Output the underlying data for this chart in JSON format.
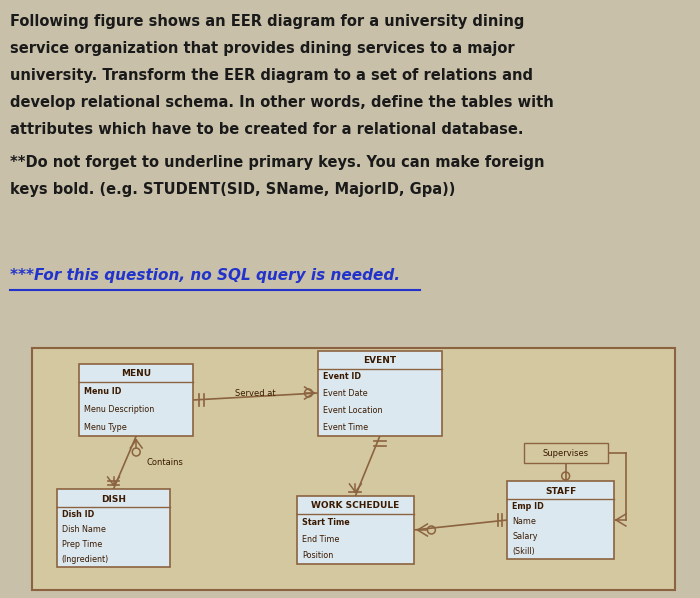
{
  "bg_color": "#c8c0a8",
  "diagram_bg": "#d4c8a0",
  "box_bg": "#dce8f0",
  "box_edge": "#8B6340",
  "text_color": "#3a1a00",
  "line_color": "#8B6340",
  "menu_title": "MENU",
  "menu_attrs": [
    "Menu ID",
    "Menu Description",
    "Menu Type"
  ],
  "event_title": "EVENT",
  "event_attrs": [
    "Event ID",
    "Event Date",
    "Event Location",
    "Event Time"
  ],
  "dish_title": "DISH",
  "dish_attrs": [
    "Dish ID",
    "Dish Name",
    "Prep Time",
    "(Ingredient)"
  ],
  "ws_title": "WORK SCHEDULE",
  "ws_attrs": [
    "Start Time",
    "End Time",
    "Position"
  ],
  "staff_title": "STAFF",
  "staff_attrs": [
    "Emp ID",
    "Name",
    "Salary",
    "(Skill)"
  ],
  "rel_served_at": "Served at",
  "rel_contains": "Contains",
  "rel_supervises": "Supervises",
  "para1_lines": [
    "Following figure shows an EER diagram for a university dining",
    "service organization that provides dining services to a major",
    "university. Transform the EER diagram to a set of relations and",
    "develop relational schema. In other words, define the tables with",
    "attributes which have to be created for a relational database."
  ],
  "para2_line1": "**Do not forget to underline primary keys. You can make foreign",
  "para2_line2": "keys bold. (e.g. STUDENT(SID, SName, MajorID, Gpa))",
  "para3": "***For this question, no SQL query is needed."
}
